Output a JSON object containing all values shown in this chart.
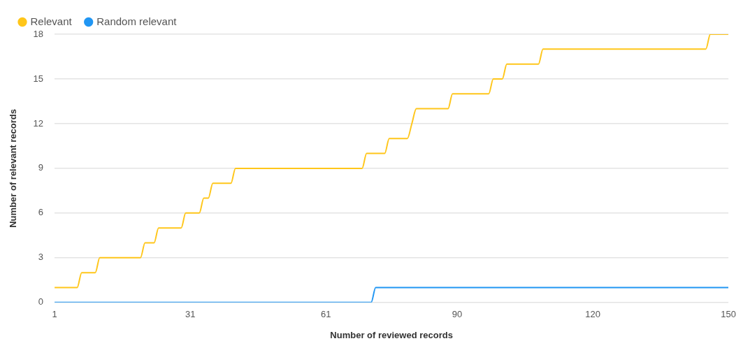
{
  "chart_data": {
    "type": "line",
    "xlabel": "Number of reviewed records",
    "ylabel": "Number of relevant records",
    "series": [
      {
        "name": "Relevant",
        "color": "#ffc61a",
        "x": [
          1,
          6,
          7,
          10,
          11,
          20,
          21,
          23,
          24,
          29,
          30,
          33,
          34,
          35,
          36,
          40,
          41,
          69,
          70,
          74,
          75,
          79,
          80,
          81,
          88,
          89,
          97,
          98,
          100,
          101,
          108,
          109,
          145,
          146,
          150
        ],
        "values": [
          1,
          1,
          2,
          2,
          3,
          3,
          4,
          4,
          5,
          5,
          6,
          6,
          7,
          7,
          8,
          8,
          9,
          9,
          10,
          10,
          11,
          11,
          12,
          13,
          13,
          14,
          14,
          15,
          15,
          16,
          16,
          17,
          17,
          18,
          18
        ]
      },
      {
        "name": "Random relevant",
        "color": "#2196f3",
        "x": [
          1,
          71,
          72,
          150
        ],
        "values": [
          0,
          0,
          1,
          1
        ]
      }
    ],
    "xlim": [
      1,
      150
    ],
    "xticks": [
      1,
      31,
      61,
      90,
      120,
      150
    ],
    "ylim": [
      0,
      18
    ],
    "yticks": [
      0,
      3,
      6,
      9,
      12,
      15,
      18
    ],
    "grid": "y",
    "legend": "top left",
    "marker": "none",
    "line_style": "solid"
  }
}
